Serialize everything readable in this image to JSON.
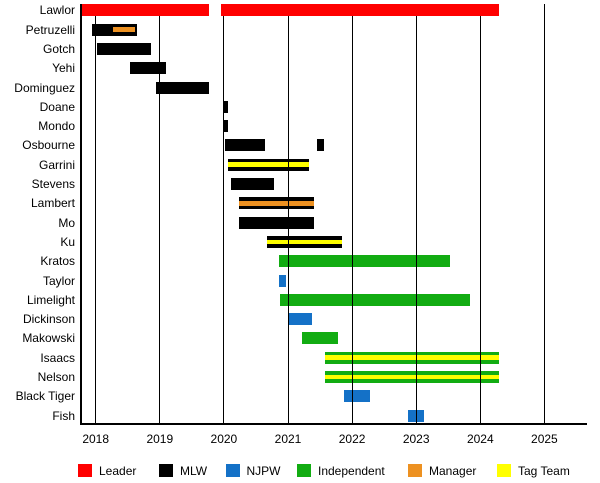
{
  "chart_data": {
    "type": "bar",
    "subtype": "timeline-gantt",
    "title": "",
    "xlabel": "",
    "ylabel": "",
    "x_axis": {
      "ticks": [
        2018,
        2019,
        2020,
        2021,
        2022,
        2023,
        2024,
        2025
      ],
      "min": 2017.77,
      "max": 2025.66,
      "grid": true
    },
    "colors": {
      "leader": "#FF0000",
      "mlw": "#000000",
      "njpw": "#1471C7",
      "independent": "#12AC12",
      "manager": "#ED9121",
      "tagteam": "#FFFF00"
    },
    "legend": [
      {
        "label": "Leader",
        "key": "leader"
      },
      {
        "label": "MLW",
        "key": "mlw"
      },
      {
        "label": "NJPW",
        "key": "njpw"
      },
      {
        "label": "Independent",
        "key": "independent"
      },
      {
        "label": "Manager",
        "key": "manager"
      },
      {
        "label": "Tag Team",
        "key": "tagteam"
      }
    ],
    "rows": [
      {
        "label": "Lawlor",
        "segments": [
          {
            "start": 2017.77,
            "end": 2019.76,
            "group": "leader"
          },
          {
            "start": 2019.95,
            "end": 2024.29,
            "group": "leader"
          }
        ]
      },
      {
        "label": "Petruzelli",
        "segments": [
          {
            "start": 2017.94,
            "end": 2018.64,
            "group": "mlw",
            "stripe": {
              "key": "manager",
              "start": 2018.27,
              "end": 2018.61
            }
          }
        ]
      },
      {
        "label": "Gotch",
        "segments": [
          {
            "start": 2018.02,
            "end": 2018.87,
            "group": "mlw"
          }
        ]
      },
      {
        "label": "Yehi",
        "segments": [
          {
            "start": 2018.53,
            "end": 2019.09,
            "group": "mlw"
          }
        ]
      },
      {
        "label": "Dominguez",
        "segments": [
          {
            "start": 2018.94,
            "end": 2019.76,
            "group": "mlw"
          }
        ]
      },
      {
        "label": "Doane",
        "segments": [
          {
            "start": 2019.98,
            "end": 2020.06,
            "group": "mlw"
          }
        ]
      },
      {
        "label": "Mondo",
        "segments": [
          {
            "start": 2019.98,
            "end": 2020.06,
            "group": "mlw"
          }
        ]
      },
      {
        "label": "Osbourne",
        "segments": [
          {
            "start": 2020.01,
            "end": 2020.64,
            "group": "mlw"
          },
          {
            "start": 2021.46,
            "end": 2021.56,
            "group": "mlw"
          }
        ]
      },
      {
        "label": "Garrini",
        "segments": [
          {
            "start": 2020.06,
            "end": 2021.32,
            "group": "mlw",
            "stripe": {
              "key": "tagteam"
            }
          }
        ]
      },
      {
        "label": "Stevens",
        "segments": [
          {
            "start": 2020.11,
            "end": 2020.78,
            "group": "mlw"
          }
        ]
      },
      {
        "label": "Lambert",
        "segments": [
          {
            "start": 2020.23,
            "end": 2021.4,
            "group": "mlw",
            "stripe": {
              "key": "manager"
            }
          }
        ]
      },
      {
        "label": "Mo",
        "segments": [
          {
            "start": 2020.23,
            "end": 2021.4,
            "group": "mlw"
          }
        ]
      },
      {
        "label": "Ku",
        "segments": [
          {
            "start": 2020.67,
            "end": 2021.84,
            "group": "mlw",
            "stripe": {
              "key": "tagteam"
            }
          }
        ]
      },
      {
        "label": "Kratos",
        "segments": [
          {
            "start": 2020.86,
            "end": 2023.52,
            "group": "independent"
          }
        ]
      },
      {
        "label": "Taylor",
        "segments": [
          {
            "start": 2020.86,
            "end": 2020.97,
            "group": "njpw"
          }
        ]
      },
      {
        "label": "Limelight",
        "segments": [
          {
            "start": 2020.87,
            "end": 2023.84,
            "group": "independent"
          }
        ]
      },
      {
        "label": "Dickinson",
        "segments": [
          {
            "start": 2021.02,
            "end": 2021.37,
            "group": "njpw"
          }
        ]
      },
      {
        "label": "Makowski",
        "segments": [
          {
            "start": 2021.22,
            "end": 2021.78,
            "group": "independent"
          }
        ]
      },
      {
        "label": "Isaacs",
        "segments": [
          {
            "start": 2021.57,
            "end": 2024.29,
            "group": "independent",
            "stripe": {
              "key": "tagteam"
            }
          }
        ]
      },
      {
        "label": "Nelson",
        "segments": [
          {
            "start": 2021.57,
            "end": 2024.29,
            "group": "independent",
            "stripe": {
              "key": "tagteam"
            }
          }
        ]
      },
      {
        "label": "Black Tiger",
        "segments": [
          {
            "start": 2021.88,
            "end": 2022.28,
            "group": "njpw"
          }
        ]
      },
      {
        "label": "Fish",
        "segments": [
          {
            "start": 2022.87,
            "end": 2023.12,
            "group": "njpw"
          }
        ]
      }
    ]
  }
}
